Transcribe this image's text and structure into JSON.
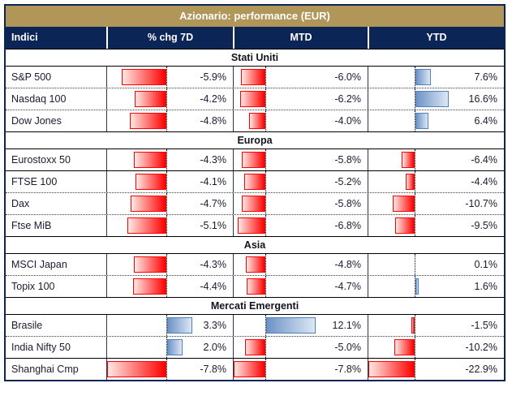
{
  "chart_data": {
    "type": "table",
    "title": "Azionario: performance (EUR)",
    "columns": [
      "Indici",
      "% chg 7D",
      "MTD",
      "YTD"
    ],
    "value_suffix": "%",
    "legend": "red bars = negative performance, blue bars = positive performance, dotted line = zero axis",
    "sections": [
      {
        "name": "Stati Uniti",
        "rows": [
          {
            "label": "S&P 500",
            "values": [
              -5.9,
              -6.0,
              7.6
            ]
          },
          {
            "label": "Nasdaq 100",
            "values": [
              -4.2,
              -6.2,
              16.6
            ]
          },
          {
            "label": "Dow Jones",
            "values": [
              -4.8,
              -4.0,
              6.4
            ]
          }
        ]
      },
      {
        "name": "Europa",
        "rows": [
          {
            "label": "Eurostoxx 50",
            "values": [
              -4.3,
              -5.8,
              -6.4
            ]
          },
          {
            "label": "FTSE 100",
            "values": [
              -4.1,
              -5.2,
              -4.4
            ],
            "divider_above": "solid"
          },
          {
            "label": "Dax",
            "values": [
              -4.7,
              -5.8,
              -10.7
            ]
          },
          {
            "label": "Ftse MiB",
            "values": [
              -5.1,
              -6.8,
              -9.5
            ]
          }
        ]
      },
      {
        "name": "Asia",
        "rows": [
          {
            "label": "MSCI Japan",
            "values": [
              -4.3,
              -4.8,
              0.1
            ]
          },
          {
            "label": "Topix 100",
            "values": [
              -4.4,
              -4.7,
              1.6
            ]
          }
        ]
      },
      {
        "name": "Mercati Emergenti",
        "rows": [
          {
            "label": "Brasile",
            "values": [
              3.3,
              12.1,
              -1.5
            ]
          },
          {
            "label": "India Nifty 50",
            "values": [
              2.0,
              -5.0,
              -10.2
            ]
          },
          {
            "label": "Shanghai Cmp",
            "values": [
              -7.8,
              -7.8,
              -22.9
            ],
            "divider_above": "solid"
          }
        ]
      }
    ]
  },
  "colors": {
    "title_bg": "#B19659",
    "header_bg": "#0C2557",
    "header_text": "#FFFFFF",
    "negative_bar": "#FF0000",
    "negative_bar_light": "#FFE8E4",
    "positive_bar_border": "#4F81BD",
    "positive_bar_fill": "#6E93C5",
    "positive_bar_light": "#DCE7F4",
    "text": "#1B1B2F"
  }
}
